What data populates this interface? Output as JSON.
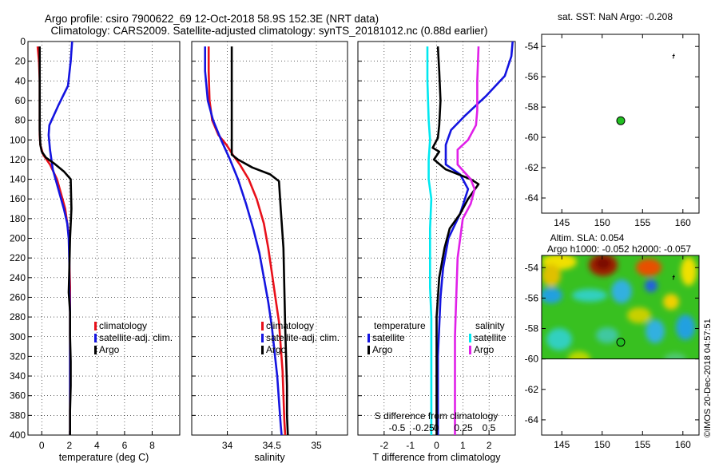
{
  "title": {
    "line1": "Argo profile: csiro 7900622_69 12-Oct-2018 58.9S 152.3E (NRT data)",
    "line2": "Climatology: CARS2009. Satellite-adjusted climatology: synTS_20181012.nc (0.88d earlier)"
  },
  "watermark": "©IMOS 20-Dec-2018 04:57:51",
  "colors": {
    "climatology": "#e8101a",
    "satellite": "#1414e0",
    "argo": "#000000",
    "sal_satellite": "#00e8f0",
    "sal_argo": "#e020e8",
    "grid": "#000000"
  },
  "chart_data": [
    {
      "type": "line",
      "name": "temperature-panel",
      "xlabel": "temperature (deg C)",
      "ylabel": "",
      "xlim": [
        -1,
        10
      ],
      "ylim": [
        400,
        0
      ],
      "xticks": [
        0,
        2,
        4,
        6,
        8
      ],
      "xtick_labels": [
        "0",
        "2",
        "4",
        "6",
        "8"
      ],
      "yticks": [
        0,
        20,
        40,
        60,
        80,
        100,
        120,
        140,
        160,
        180,
        200,
        220,
        240,
        260,
        280,
        300,
        320,
        340,
        360,
        380,
        400
      ],
      "ytick_labels": [
        "0",
        "20",
        "40",
        "60",
        "80",
        "100",
        "120",
        "140",
        "160",
        "180",
        "200",
        "220",
        "240",
        "260",
        "280",
        "300",
        "320",
        "340",
        "360",
        "380",
        "400"
      ],
      "grid": true,
      "legend": [
        "climatology",
        "satellite-adj. clim.",
        "Argo"
      ],
      "series": [
        {
          "name": "climatology",
          "color": "#e8101a",
          "x": [
            -0.3,
            -0.2,
            -0.15,
            -0.15,
            -0.15,
            -0.15,
            -0.1,
            0.1,
            0.6,
            1.1,
            1.4,
            1.7,
            1.85,
            2.0,
            2.0,
            2.05,
            2.05,
            2.05,
            2.05,
            2.05,
            2.05,
            2.05
          ],
          "y": [
            5,
            20,
            40,
            60,
            80,
            95,
            105,
            115,
            125,
            140,
            155,
            170,
            185,
            200,
            225,
            250,
            275,
            300,
            325,
            350,
            375,
            400
          ]
        },
        {
          "name": "satellite-adj. clim.",
          "color": "#1414e0",
          "x": [
            2.2,
            2.1,
            1.9,
            1.2,
            0.55,
            0.5,
            0.6,
            0.8,
            1.2,
            1.6,
            1.85,
            1.95,
            2.0,
            2.0,
            2.05,
            2.05,
            2.05,
            2.05,
            2.05,
            2.05,
            2.05
          ],
          "y": [
            0,
            20,
            45,
            65,
            85,
            95,
            110,
            130,
            150,
            170,
            185,
            200,
            225,
            250,
            275,
            300,
            325,
            350,
            375,
            400,
            400
          ]
        },
        {
          "name": "Argo",
          "color": "#000000",
          "x": [
            -0.15,
            -0.15,
            -0.15,
            -0.15,
            -0.1,
            0.0,
            0.3,
            0.9,
            1.6,
            2.1,
            2.15,
            2.05,
            2.0,
            1.95,
            2.05,
            2.05,
            2.1,
            2.1,
            2.05,
            2.05,
            2.05
          ],
          "y": [
            5,
            30,
            60,
            90,
            105,
            112,
            118,
            124,
            132,
            140,
            170,
            200,
            230,
            255,
            275,
            300,
            325,
            350,
            375,
            400,
            400
          ]
        }
      ]
    },
    {
      "type": "line",
      "name": "salinity-panel",
      "xlabel": "salinity",
      "xlim": [
        33.6,
        35.35
      ],
      "ylim": [
        400,
        0
      ],
      "xticks": [
        34,
        34.5,
        35
      ],
      "xtick_labels": [
        "34",
        "34.5",
        "35"
      ],
      "grid": true,
      "legend": [
        "climatology",
        "satellite-adj. clim.",
        "Argo"
      ],
      "series": [
        {
          "name": "climatology",
          "color": "#e8101a",
          "x": [
            33.79,
            33.79,
            33.8,
            33.83,
            33.9,
            33.99,
            34.06,
            34.14,
            34.24,
            34.33,
            34.41,
            34.46,
            34.5,
            34.54,
            34.58,
            34.6,
            34.62,
            34.63,
            34.64,
            34.65
          ],
          "y": [
            5,
            30,
            60,
            80,
            95,
            105,
            115,
            125,
            140,
            160,
            185,
            210,
            235,
            260,
            285,
            310,
            335,
            360,
            385,
            400
          ]
        },
        {
          "name": "satellite-adj. clim.",
          "color": "#1414e0",
          "x": [
            33.75,
            33.75,
            33.78,
            33.84,
            33.93,
            34.03,
            34.12,
            34.21,
            34.29,
            34.36,
            34.41,
            34.46,
            34.5,
            34.53,
            34.56,
            34.58,
            34.6,
            34.61
          ],
          "y": [
            5,
            30,
            60,
            80,
            100,
            120,
            140,
            165,
            190,
            215,
            240,
            265,
            290,
            315,
            340,
            365,
            390,
            400
          ]
        },
        {
          "name": "Argo",
          "color": "#000000",
          "x": [
            34.05,
            34.05,
            34.05,
            34.05,
            34.05,
            34.05,
            34.12,
            34.28,
            34.48,
            34.58,
            34.6,
            34.63,
            34.64,
            34.65,
            34.66,
            34.67,
            34.67,
            34.68
          ],
          "y": [
            5,
            30,
            60,
            90,
            110,
            115,
            120,
            128,
            135,
            142,
            170,
            210,
            250,
            290,
            320,
            350,
            380,
            400
          ]
        }
      ]
    },
    {
      "type": "line",
      "name": "difference-panel",
      "xlabel": "T difference from climatology",
      "top_axis_label": "S difference from climatology",
      "xlim": [
        -3,
        3
      ],
      "ylim": [
        400,
        0
      ],
      "xticks": [
        -2,
        -1,
        0,
        1,
        2
      ],
      "xtick_labels": [
        "-2",
        "-1",
        "0",
        "1",
        "2"
      ],
      "top_tick_labels": [
        "-0.5",
        "-0.25",
        "0",
        "0.25",
        "0.5"
      ],
      "grid": true,
      "legend_temperature": {
        "title": "temperature",
        "items": [
          "satellite",
          "Argo"
        ]
      },
      "legend_salinity": {
        "title": "salinity",
        "items": [
          "satellite",
          "Argo"
        ]
      },
      "series": [
        {
          "name": "T satellite",
          "color": "#1414e0",
          "x": [
            2.9,
            2.85,
            2.6,
            1.9,
            1.1,
            0.55,
            0.35,
            0.35,
            0.9,
            1.2,
            0.9,
            0.45,
            0.25,
            0.15,
            0.1,
            0.05,
            0.05,
            0.05,
            0.05,
            0.05
          ],
          "y": [
            0,
            15,
            35,
            55,
            75,
            90,
            105,
            125,
            135,
            150,
            175,
            200,
            230,
            260,
            290,
            320,
            350,
            375,
            395,
            400
          ]
        },
        {
          "name": "T Argo",
          "color": "#000000",
          "x": [
            0.05,
            0.1,
            0.15,
            0.1,
            0.05,
            -0.15,
            0.1,
            -0.1,
            0.35,
            1.3,
            1.6,
            1.2,
            0.9,
            0.5,
            0.3,
            0.1,
            0.0,
            0.0,
            0.0,
            0.0
          ],
          "y": [
            5,
            30,
            60,
            85,
            98,
            108,
            112,
            120,
            130,
            140,
            145,
            160,
            175,
            190,
            210,
            240,
            280,
            320,
            370,
            400
          ]
        },
        {
          "name": "S satellite",
          "color": "#00e8f0",
          "x": [
            -0.35,
            -0.35,
            -0.3,
            -0.25,
            -0.3,
            -0.3,
            -0.2,
            -0.25,
            -0.25,
            -0.25,
            -0.2,
            -0.2,
            -0.2,
            -0.2,
            -0.2
          ],
          "y": [
            5,
            40,
            80,
            100,
            120,
            140,
            160,
            190,
            220,
            250,
            280,
            310,
            340,
            370,
            400
          ]
        },
        {
          "name": "S Argo",
          "color": "#e020e8",
          "x": [
            1.6,
            1.55,
            1.55,
            1.5,
            1.2,
            0.8,
            0.8,
            1.3,
            1.45,
            1.3,
            1.0,
            0.8,
            0.75,
            0.7,
            0.7,
            0.7
          ],
          "y": [
            5,
            40,
            70,
            85,
            100,
            110,
            125,
            140,
            150,
            165,
            180,
            220,
            260,
            300,
            350,
            400
          ]
        }
      ]
    },
    {
      "type": "scatter",
      "name": "map-sst",
      "title": "sat. SST: NaN Argo: -0.208",
      "xlim": [
        142.5,
        162
      ],
      "ylim": [
        -65,
        -53.2
      ],
      "xticks": [
        145,
        150,
        155,
        160
      ],
      "xtick_labels": [
        "145",
        "150",
        "155",
        "160"
      ],
      "yticks": [
        -54,
        -56,
        -58,
        -60,
        -62,
        -64
      ],
      "ytick_labels": [
        "-54",
        "-56",
        "-58",
        "-60",
        "-62",
        "-64"
      ],
      "points": [
        {
          "lon": 152.3,
          "lat": -58.9
        }
      ]
    },
    {
      "type": "heatmap",
      "name": "map-sla",
      "title": "Altim. SLA: 0.054",
      "subtitle": "Argo h1000: -0.052 h2000: -0.057",
      "xlim": [
        142.5,
        162
      ],
      "ylim": [
        -65,
        -53.2
      ],
      "xticks": [
        145,
        150,
        155,
        160
      ],
      "xtick_labels": [
        "145",
        "150",
        "155",
        "160"
      ],
      "yticks": [
        -54,
        -56,
        -58,
        -60,
        -62,
        -64
      ],
      "ytick_labels": [
        "-54",
        "-56",
        "-58",
        "-60",
        "-62",
        "-64"
      ],
      "data_extent_lat": [
        -60,
        -53.2
      ],
      "points": [
        {
          "lon": 152.3,
          "lat": -58.9
        }
      ]
    }
  ]
}
